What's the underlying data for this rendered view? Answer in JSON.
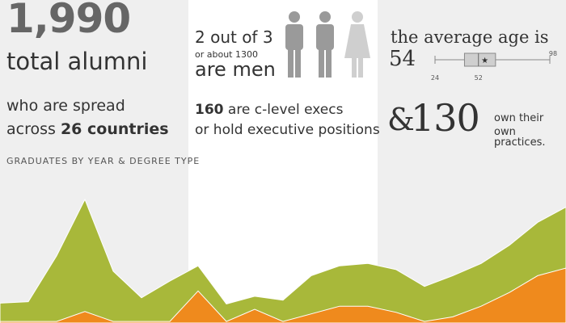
{
  "stats": {
    "total_alumni_number": "1,990",
    "total_alumni_label": "total alumni",
    "spread_line1": "who are spread",
    "spread_prefix": "across ",
    "spread_countries": "26 countries",
    "graduates_caption": "graduates by year & degree Type"
  },
  "gender": {
    "ratio_text": "2 out of 3",
    "about_text": "or about 1300",
    "are_men_text": "are men",
    "icons": [
      "male-person-icon",
      "male-person-icon",
      "female-person-icon"
    ]
  },
  "execs": {
    "count": "160",
    "line1_rest": " are c-level execs",
    "line2": "or hold executive positions"
  },
  "age": {
    "label": "the average age is",
    "value": "54",
    "min_label": "24",
    "median_label": "52",
    "max_label": "98",
    "min": 24,
    "q1": 43,
    "median": 52,
    "mean": 54,
    "q3": 63,
    "max": 98,
    "axis_min": 24,
    "axis_max": 98
  },
  "practices": {
    "ampersand": "&",
    "count": "130",
    "line1": "own their",
    "line2": "own practices."
  },
  "colors": {
    "green": "#a8b83a",
    "orange": "#ef8a1d",
    "figure_male": "#9a9a9a",
    "figure_female": "#cfcfcf",
    "box_fill": "#cfcfcf",
    "box_stroke": "#888888"
  },
  "chart_data": {
    "type": "area",
    "title": "graduates by year & degree Type",
    "xlabel": "",
    "ylabel": "",
    "x": [
      0,
      1,
      2,
      3,
      4,
      5,
      6,
      7,
      8,
      9,
      10,
      11,
      12,
      13,
      14,
      15,
      16,
      17,
      18,
      19,
      20
    ],
    "ylim": [
      0,
      180
    ],
    "series": [
      {
        "values": [
          26,
          28,
          88,
          162,
          68,
          33,
          55,
          75,
          25,
          35,
          30,
          62,
          75,
          78,
          70,
          48,
          62,
          78,
          102,
          132,
          152
        ]
      },
      {
        "values": [
          2,
          2,
          2,
          15,
          2,
          2,
          2,
          42,
          2,
          18,
          2,
          12,
          22,
          22,
          14,
          2,
          8,
          22,
          40,
          62,
          72
        ]
      }
    ]
  }
}
